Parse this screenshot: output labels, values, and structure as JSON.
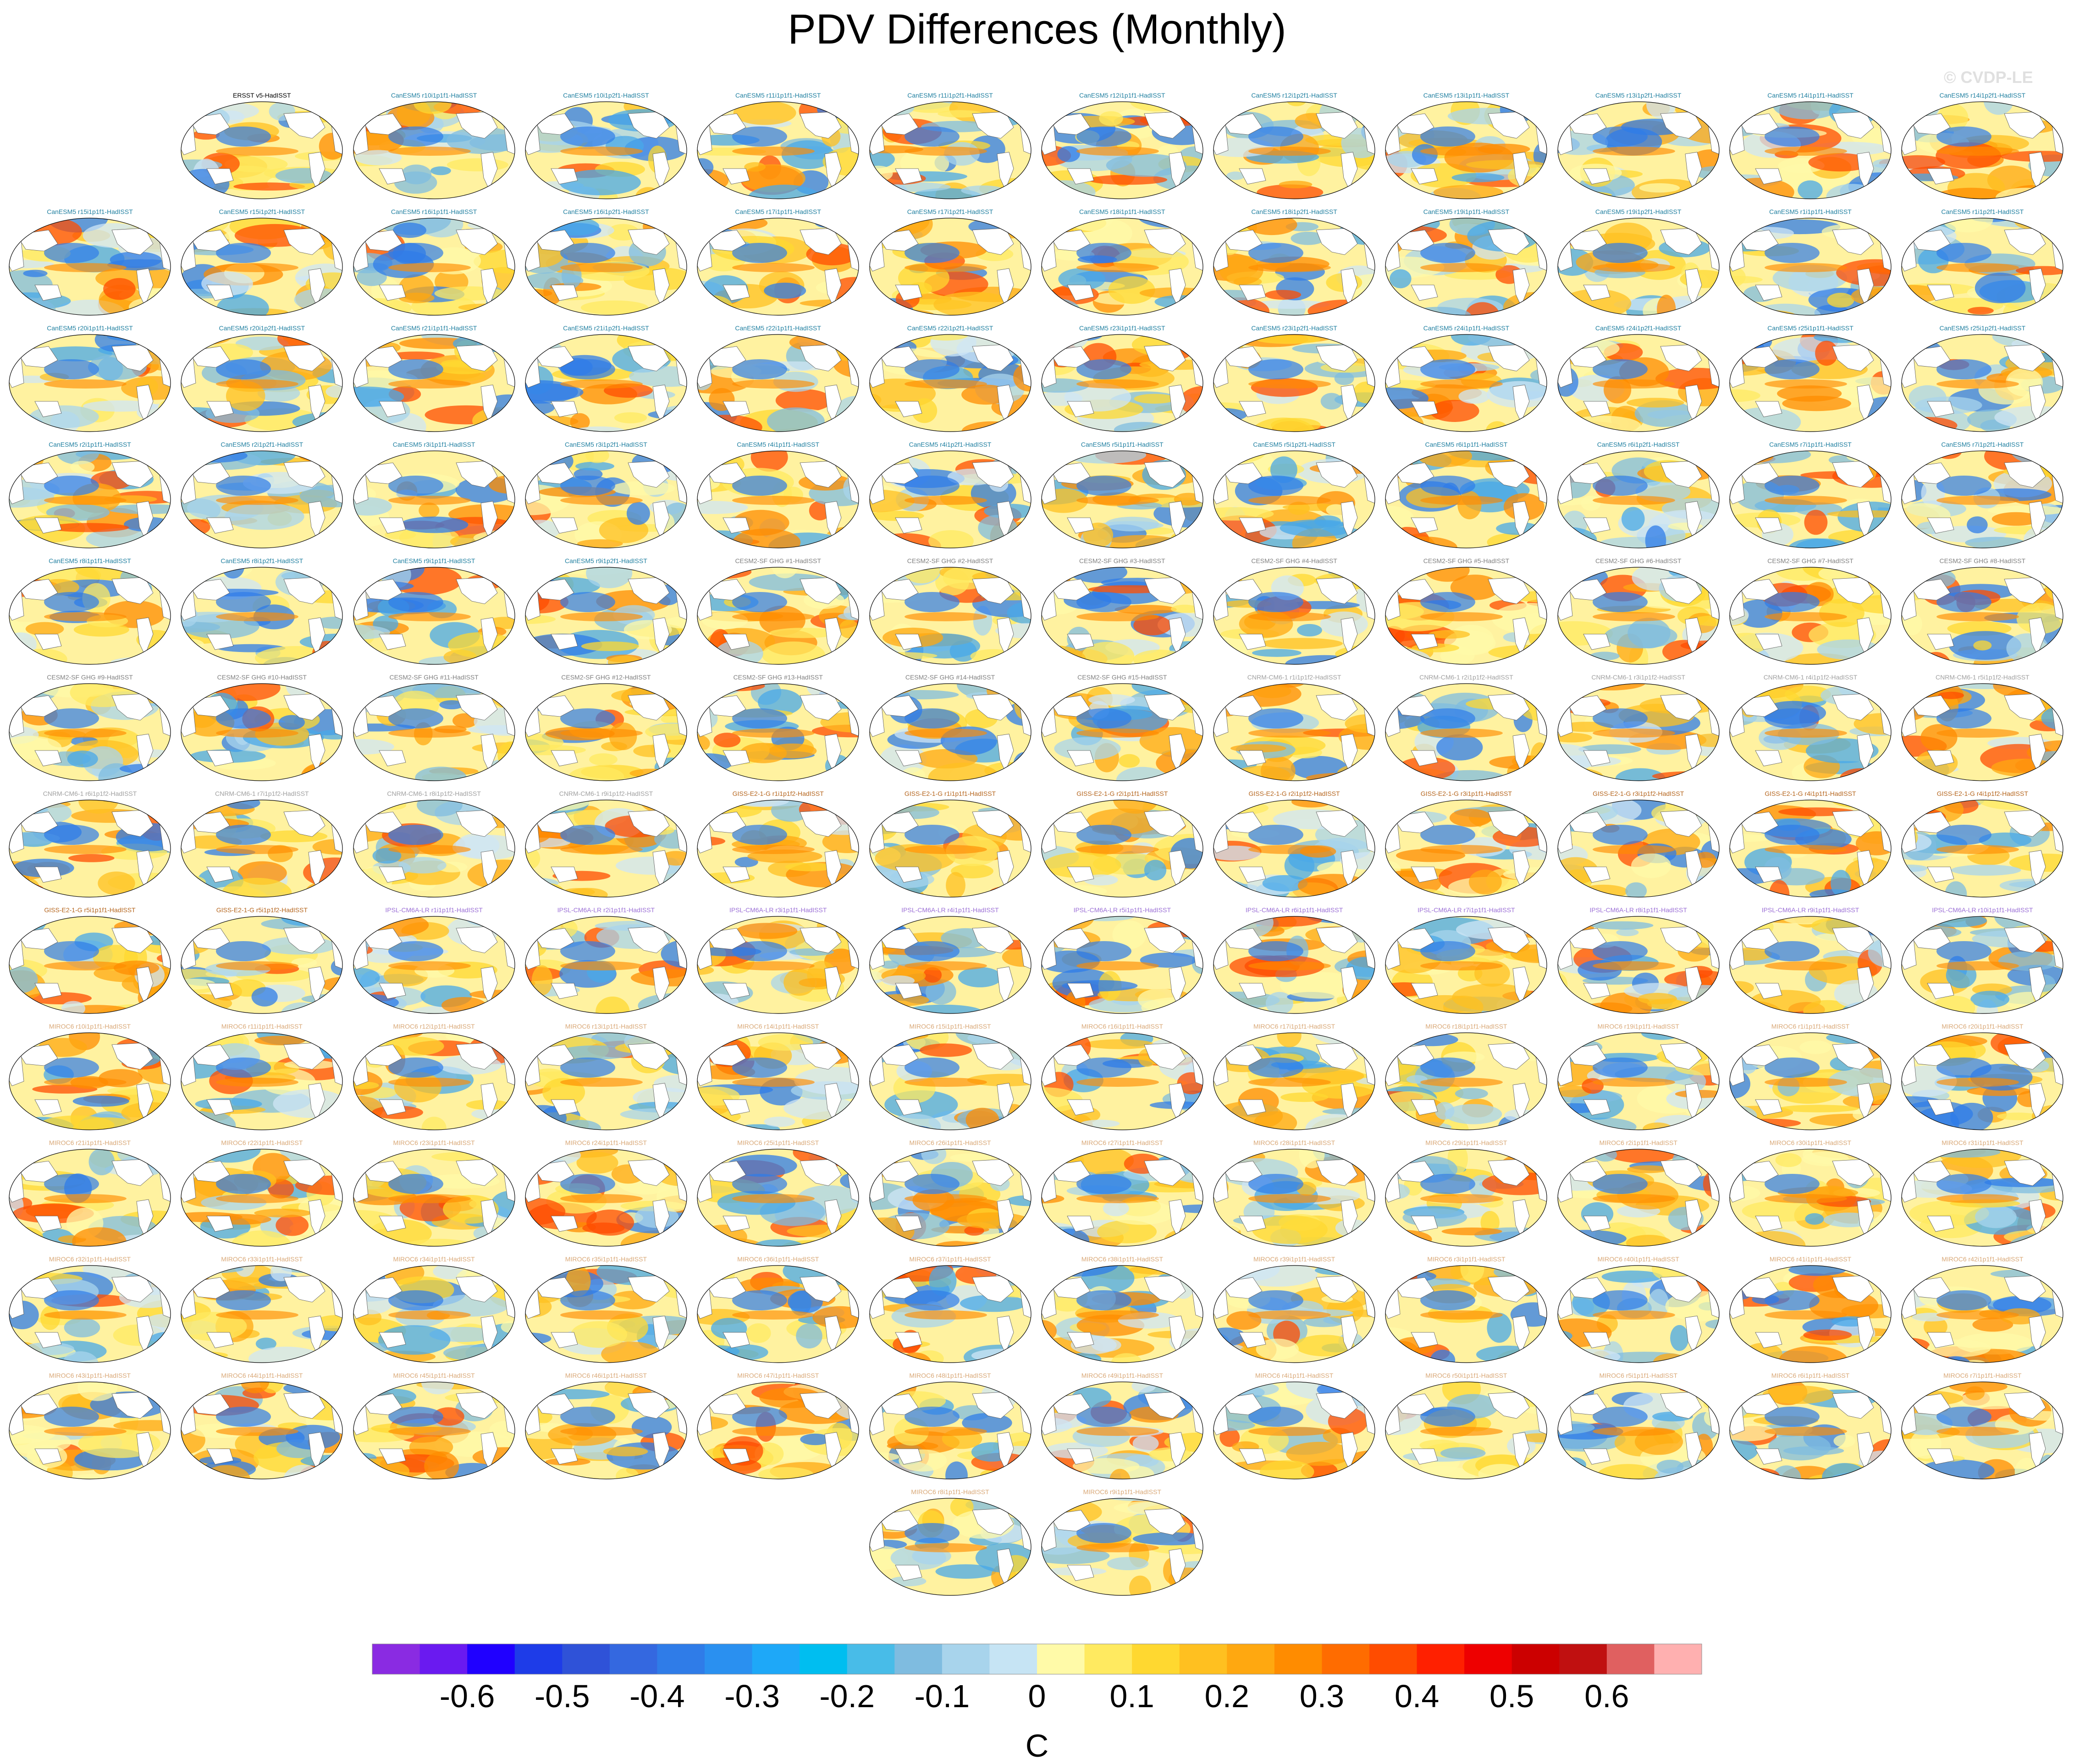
{
  "title": "PDV Differences (Monthly)",
  "watermark": "© CVDP-LE",
  "chart_data": {
    "type": "heatmap",
    "title": "PDV Differences (Monthly)",
    "panel_rows": [
      {
        "offset": 1,
        "panels": [
          {
            "label": "ERSST v5-HadISST",
            "group": "obs"
          },
          {
            "label": "CanESM5 r10i1p1f1-HadISST",
            "group": "canesm"
          },
          {
            "label": "CanESM5 r10i1p2f1-HadISST",
            "group": "canesm"
          },
          {
            "label": "CanESM5 r11i1p1f1-HadISST",
            "group": "canesm"
          },
          {
            "label": "CanESM5 r11i1p2f1-HadISST",
            "group": "canesm"
          },
          {
            "label": "CanESM5 r12i1p1f1-HadISST",
            "group": "canesm"
          },
          {
            "label": "CanESM5 r12i1p2f1-HadISST",
            "group": "canesm"
          },
          {
            "label": "CanESM5 r13i1p1f1-HadISST",
            "group": "canesm"
          },
          {
            "label": "CanESM5 r13i1p2f1-HadISST",
            "group": "canesm"
          },
          {
            "label": "CanESM5 r14i1p1f1-HadISST",
            "group": "canesm"
          },
          {
            "label": "CanESM5 r14i1p2f1-HadISST",
            "group": "canesm"
          }
        ]
      },
      {
        "offset": 0,
        "panels": [
          {
            "label": "CanESM5 r15i1p1f1-HadISST",
            "group": "canesm"
          },
          {
            "label": "CanESM5 r15i1p2f1-HadISST",
            "group": "canesm"
          },
          {
            "label": "CanESM5 r16i1p1f1-HadISST",
            "group": "canesm"
          },
          {
            "label": "CanESM5 r16i1p2f1-HadISST",
            "group": "canesm"
          },
          {
            "label": "CanESM5 r17i1p1f1-HadISST",
            "group": "canesm"
          },
          {
            "label": "CanESM5 r17i1p2f1-HadISST",
            "group": "canesm"
          },
          {
            "label": "CanESM5 r18i1p1f1-HadISST",
            "group": "canesm"
          },
          {
            "label": "CanESM5 r18i1p2f1-HadISST",
            "group": "canesm"
          },
          {
            "label": "CanESM5 r19i1p1f1-HadISST",
            "group": "canesm"
          },
          {
            "label": "CanESM5 r19i1p2f1-HadISST",
            "group": "canesm"
          },
          {
            "label": "CanESM5 r1i1p1f1-HadISST",
            "group": "canesm"
          },
          {
            "label": "CanESM5 r1i1p2f1-HadISST",
            "group": "canesm"
          }
        ]
      },
      {
        "offset": 0,
        "panels": [
          {
            "label": "CanESM5 r20i1p1f1-HadISST",
            "group": "canesm"
          },
          {
            "label": "CanESM5 r20i1p2f1-HadISST",
            "group": "canesm"
          },
          {
            "label": "CanESM5 r21i1p1f1-HadISST",
            "group": "canesm"
          },
          {
            "label": "CanESM5 r21i1p2f1-HadISST",
            "group": "canesm"
          },
          {
            "label": "CanESM5 r22i1p1f1-HadISST",
            "group": "canesm"
          },
          {
            "label": "CanESM5 r22i1p2f1-HadISST",
            "group": "canesm"
          },
          {
            "label": "CanESM5 r23i1p1f1-HadISST",
            "group": "canesm"
          },
          {
            "label": "CanESM5 r23i1p2f1-HadISST",
            "group": "canesm"
          },
          {
            "label": "CanESM5 r24i1p1f1-HadISST",
            "group": "canesm"
          },
          {
            "label": "CanESM5 r24i1p2f1-HadISST",
            "group": "canesm"
          },
          {
            "label": "CanESM5 r25i1p1f1-HadISST",
            "group": "canesm"
          },
          {
            "label": "CanESM5 r25i1p2f1-HadISST",
            "group": "canesm"
          }
        ]
      },
      {
        "offset": 0,
        "panels": [
          {
            "label": "CanESM5 r2i1p1f1-HadISST",
            "group": "canesm"
          },
          {
            "label": "CanESM5 r2i1p2f1-HadISST",
            "group": "canesm"
          },
          {
            "label": "CanESM5 r3i1p1f1-HadISST",
            "group": "canesm"
          },
          {
            "label": "CanESM5 r3i1p2f1-HadISST",
            "group": "canesm"
          },
          {
            "label": "CanESM5 r4i1p1f1-HadISST",
            "group": "canesm"
          },
          {
            "label": "CanESM5 r4i1p2f1-HadISST",
            "group": "canesm"
          },
          {
            "label": "CanESM5 r5i1p1f1-HadISST",
            "group": "canesm"
          },
          {
            "label": "CanESM5 r5i1p2f1-HadISST",
            "group": "canesm"
          },
          {
            "label": "CanESM5 r6i1p1f1-HadISST",
            "group": "canesm"
          },
          {
            "label": "CanESM5 r6i1p2f1-HadISST",
            "group": "canesm"
          },
          {
            "label": "CanESM5 r7i1p1f1-HadISST",
            "group": "canesm"
          },
          {
            "label": "CanESM5 r7i1p2f1-HadISST",
            "group": "canesm"
          }
        ]
      },
      {
        "offset": 0,
        "panels": [
          {
            "label": "CanESM5 r8i1p1f1-HadISST",
            "group": "canesm"
          },
          {
            "label": "CanESM5 r8i1p2f1-HadISST",
            "group": "canesm"
          },
          {
            "label": "CanESM5 r9i1p1f1-HadISST",
            "group": "canesm"
          },
          {
            "label": "CanESM5 r9i1p2f1-HadISST",
            "group": "canesm"
          },
          {
            "label": "CESM2-SF GHG #1-HadISST",
            "group": "cesm"
          },
          {
            "label": "CESM2-SF GHG #2-HadISST",
            "group": "cesm"
          },
          {
            "label": "CESM2-SF GHG #3-HadISST",
            "group": "cesm"
          },
          {
            "label": "CESM2-SF GHG #4-HadISST",
            "group": "cesm"
          },
          {
            "label": "CESM2-SF GHG #5-HadISST",
            "group": "cesm"
          },
          {
            "label": "CESM2-SF GHG #6-HadISST",
            "group": "cesm"
          },
          {
            "label": "CESM2-SF GHG #7-HadISST",
            "group": "cesm"
          },
          {
            "label": "CESM2-SF GHG #8-HadISST",
            "group": "cesm"
          }
        ]
      },
      {
        "offset": 0,
        "panels": [
          {
            "label": "CESM2-SF GHG #9-HadISST",
            "group": "cesm"
          },
          {
            "label": "CESM2-SF GHG #10-HadISST",
            "group": "cesm"
          },
          {
            "label": "CESM2-SF GHG #11-HadISST",
            "group": "cesm"
          },
          {
            "label": "CESM2-SF GHG #12-HadISST",
            "group": "cesm"
          },
          {
            "label": "CESM2-SF GHG #13-HadISST",
            "group": "cesm"
          },
          {
            "label": "CESM2-SF GHG #14-HadISST",
            "group": "cesm"
          },
          {
            "label": "CESM2-SF GHG #15-HadISST",
            "group": "cesm"
          },
          {
            "label": "CNRM-CM6-1 r1i1p1f2-HadISST",
            "group": "cnrm"
          },
          {
            "label": "CNRM-CM6-1 r2i1p1f2-HadISST",
            "group": "cnrm"
          },
          {
            "label": "CNRM-CM6-1 r3i1p1f2-HadISST",
            "group": "cnrm"
          },
          {
            "label": "CNRM-CM6-1 r4i1p1f2-HadISST",
            "group": "cnrm"
          },
          {
            "label": "CNRM-CM6-1 r5i1p1f2-HadISST",
            "group": "cnrm"
          }
        ]
      },
      {
        "offset": 0,
        "panels": [
          {
            "label": "CNRM-CM6-1 r6i1p1f2-HadISST",
            "group": "cnrm"
          },
          {
            "label": "CNRM-CM6-1 r7i1p1f2-HadISST",
            "group": "cnrm"
          },
          {
            "label": "CNRM-CM6-1 r8i1p1f2-HadISST",
            "group": "cnrm"
          },
          {
            "label": "CNRM-CM6-1 r9i1p1f2-HadISST",
            "group": "cnrm"
          },
          {
            "label": "GISS-E2-1-G r1i1p1f2-HadISST",
            "group": "giss"
          },
          {
            "label": "GISS-E2-1-G r1i1p1f1-HadISST",
            "group": "giss"
          },
          {
            "label": "GISS-E2-1-G r2i1p1f1-HadISST",
            "group": "giss"
          },
          {
            "label": "GISS-E2-1-G r2i1p1f2-HadISST",
            "group": "giss"
          },
          {
            "label": "GISS-E2-1-G r3i1p1f1-HadISST",
            "group": "giss"
          },
          {
            "label": "GISS-E2-1-G r3i1p1f2-HadISST",
            "group": "giss"
          },
          {
            "label": "GISS-E2-1-G r4i1p1f1-HadISST",
            "group": "giss"
          },
          {
            "label": "GISS-E2-1-G r4i1p1f2-HadISST",
            "group": "giss"
          }
        ]
      },
      {
        "offset": 0,
        "panels": [
          {
            "label": "GISS-E2-1-G r5i1p1f1-HadISST",
            "group": "giss"
          },
          {
            "label": "GISS-E2-1-G r5i1p1f2-HadISST",
            "group": "giss"
          },
          {
            "label": "IPSL-CM6A-LR r1i1p1f1-HadISST",
            "group": "ipsl"
          },
          {
            "label": "IPSL-CM6A-LR r2i1p1f1-HadISST",
            "group": "ipsl"
          },
          {
            "label": "IPSL-CM6A-LR r3i1p1f1-HadISST",
            "group": "ipsl"
          },
          {
            "label": "IPSL-CM6A-LR r4i1p1f1-HadISST",
            "group": "ipsl"
          },
          {
            "label": "IPSL-CM6A-LR r5i1p1f1-HadISST",
            "group": "ipsl"
          },
          {
            "label": "IPSL-CM6A-LR r6i1p1f1-HadISST",
            "group": "ipsl"
          },
          {
            "label": "IPSL-CM6A-LR r7i1p1f1-HadISST",
            "group": "ipsl"
          },
          {
            "label": "IPSL-CM6A-LR r8i1p1f1-HadISST",
            "group": "ipsl"
          },
          {
            "label": "IPSL-CM6A-LR r9i1p1f1-HadISST",
            "group": "ipsl"
          },
          {
            "label": "IPSL-CM6A-LR r10i1p1f1-HadISST",
            "group": "ipsl"
          }
        ]
      },
      {
        "offset": 0,
        "panels": [
          {
            "label": "MIROC6 r10i1p1f1-HadISST",
            "group": "miroc"
          },
          {
            "label": "MIROC6 r11i1p1f1-HadISST",
            "group": "miroc"
          },
          {
            "label": "MIROC6 r12i1p1f1-HadISST",
            "group": "miroc"
          },
          {
            "label": "MIROC6 r13i1p1f1-HadISST",
            "group": "miroc"
          },
          {
            "label": "MIROC6 r14i1p1f1-HadISST",
            "group": "miroc"
          },
          {
            "label": "MIROC6 r15i1p1f1-HadISST",
            "group": "miroc"
          },
          {
            "label": "MIROC6 r16i1p1f1-HadISST",
            "group": "miroc"
          },
          {
            "label": "MIROC6 r17i1p1f1-HadISST",
            "group": "miroc"
          },
          {
            "label": "MIROC6 r18i1p1f1-HadISST",
            "group": "miroc"
          },
          {
            "label": "MIROC6 r19i1p1f1-HadISST",
            "group": "miroc"
          },
          {
            "label": "MIROC6 r1i1p1f1-HadISST",
            "group": "miroc"
          },
          {
            "label": "MIROC6 r20i1p1f1-HadISST",
            "group": "miroc"
          }
        ]
      },
      {
        "offset": 0,
        "panels": [
          {
            "label": "MIROC6 r21i1p1f1-HadISST",
            "group": "miroc"
          },
          {
            "label": "MIROC6 r22i1p1f1-HadISST",
            "group": "miroc"
          },
          {
            "label": "MIROC6 r23i1p1f1-HadISST",
            "group": "miroc"
          },
          {
            "label": "MIROC6 r24i1p1f1-HadISST",
            "group": "miroc"
          },
          {
            "label": "MIROC6 r25i1p1f1-HadISST",
            "group": "miroc"
          },
          {
            "label": "MIROC6 r26i1p1f1-HadISST",
            "group": "miroc"
          },
          {
            "label": "MIROC6 r27i1p1f1-HadISST",
            "group": "miroc"
          },
          {
            "label": "MIROC6 r28i1p1f1-HadISST",
            "group": "miroc"
          },
          {
            "label": "MIROC6 r29i1p1f1-HadISST",
            "group": "miroc"
          },
          {
            "label": "MIROC6 r2i1p1f1-HadISST",
            "group": "miroc"
          },
          {
            "label": "MIROC6 r30i1p1f1-HadISST",
            "group": "miroc"
          },
          {
            "label": "MIROC6 r31i1p1f1-HadISST",
            "group": "miroc"
          }
        ]
      },
      {
        "offset": 0,
        "panels": [
          {
            "label": "MIROC6 r32i1p1f1-HadISST",
            "group": "miroc"
          },
          {
            "label": "MIROC6 r33i1p1f1-HadISST",
            "group": "miroc"
          },
          {
            "label": "MIROC6 r34i1p1f1-HadISST",
            "group": "miroc"
          },
          {
            "label": "MIROC6 r35i1p1f1-HadISST",
            "group": "miroc"
          },
          {
            "label": "MIROC6 r36i1p1f1-HadISST",
            "group": "miroc"
          },
          {
            "label": "MIROC6 r37i1p1f1-HadISST",
            "group": "miroc"
          },
          {
            "label": "MIROC6 r38i1p1f1-HadISST",
            "group": "miroc"
          },
          {
            "label": "MIROC6 r39i1p1f1-HadISST",
            "group": "miroc"
          },
          {
            "label": "MIROC6 r3i1p1f1-HadISST",
            "group": "miroc"
          },
          {
            "label": "MIROC6 r40i1p1f1-HadISST",
            "group": "miroc"
          },
          {
            "label": "MIROC6 r41i1p1f1-HadISST",
            "group": "miroc"
          },
          {
            "label": "MIROC6 r42i1p1f1-HadISST",
            "group": "miroc"
          }
        ]
      },
      {
        "offset": 0,
        "panels": [
          {
            "label": "MIROC6 r43i1p1f1-HadISST",
            "group": "miroc"
          },
          {
            "label": "MIROC6 r44i1p1f1-HadISST",
            "group": "miroc"
          },
          {
            "label": "MIROC6 r45i1p1f1-HadISST",
            "group": "miroc"
          },
          {
            "label": "MIROC6 r46i1p1f1-HadISST",
            "group": "miroc"
          },
          {
            "label": "MIROC6 r47i1p1f1-HadISST",
            "group": "miroc"
          },
          {
            "label": "MIROC6 r48i1p1f1-HadISST",
            "group": "miroc"
          },
          {
            "label": "MIROC6 r49i1p1f1-HadISST",
            "group": "miroc"
          },
          {
            "label": "MIROC6 r4i1p1f1-HadISST",
            "group": "miroc"
          },
          {
            "label": "MIROC6 r50i1p1f1-HadISST",
            "group": "miroc"
          },
          {
            "label": "MIROC6 r5i1p1f1-HadISST",
            "group": "miroc"
          },
          {
            "label": "MIROC6 r6i1p1f1-HadISST",
            "group": "miroc"
          },
          {
            "label": "MIROC6 r7i1p1f1-HadISST",
            "group": "miroc"
          }
        ]
      },
      {
        "offset": 5,
        "panels": [
          {
            "label": "MIROC6 r8i1p1f1-HadISST",
            "group": "miroc"
          },
          {
            "label": "MIROC6 r9i1p1f1-HadISST",
            "group": "miroc"
          }
        ]
      }
    ],
    "label_colors": {
      "obs": "#000000",
      "canesm": "#1f7fa0",
      "cesm": "#808080",
      "cnrm": "#a0a0a0",
      "giss": "#b5651d",
      "ipsl": "#9b6fd6",
      "miroc": "#d9a877"
    },
    "colorbar": {
      "levels": [
        -0.65,
        -0.6,
        -0.55,
        -0.5,
        -0.45,
        -0.4,
        -0.35,
        -0.3,
        -0.25,
        -0.2,
        -0.15,
        -0.1,
        -0.05,
        0,
        0.05,
        0.1,
        0.15,
        0.2,
        0.25,
        0.3,
        0.35,
        0.4,
        0.45,
        0.5,
        0.55,
        0.6,
        0.65
      ],
      "tick_labels": [
        "-0.6",
        "-0.5",
        "-0.4",
        "-0.3",
        "-0.2",
        "-0.1",
        "0",
        "0.1",
        "0.2",
        "0.3",
        "0.4",
        "0.5",
        "0.6"
      ],
      "tick_values": [
        -0.6,
        -0.5,
        -0.4,
        -0.3,
        -0.2,
        -0.1,
        0,
        0.1,
        0.2,
        0.3,
        0.4,
        0.5,
        0.6
      ],
      "colors": [
        "#8a2be2",
        "#6a1af0",
        "#2000ff",
        "#1e3ce8",
        "#2f52d8",
        "#3468e0",
        "#2f7ce8",
        "#2a90f0",
        "#1ea8f8",
        "#00bef0",
        "#48bce8",
        "#7fbce0",
        "#a8d4ec",
        "#c6e4f4",
        "#fffaa8",
        "#ffea60",
        "#ffd830",
        "#ffc020",
        "#ffa810",
        "#ff8c00",
        "#ff6c00",
        "#ff4c00",
        "#ff2000",
        "#ee0000",
        "#cc0000",
        "#c01010",
        "#e06060",
        "#ffb0b0"
      ],
      "unit": "C"
    }
  }
}
